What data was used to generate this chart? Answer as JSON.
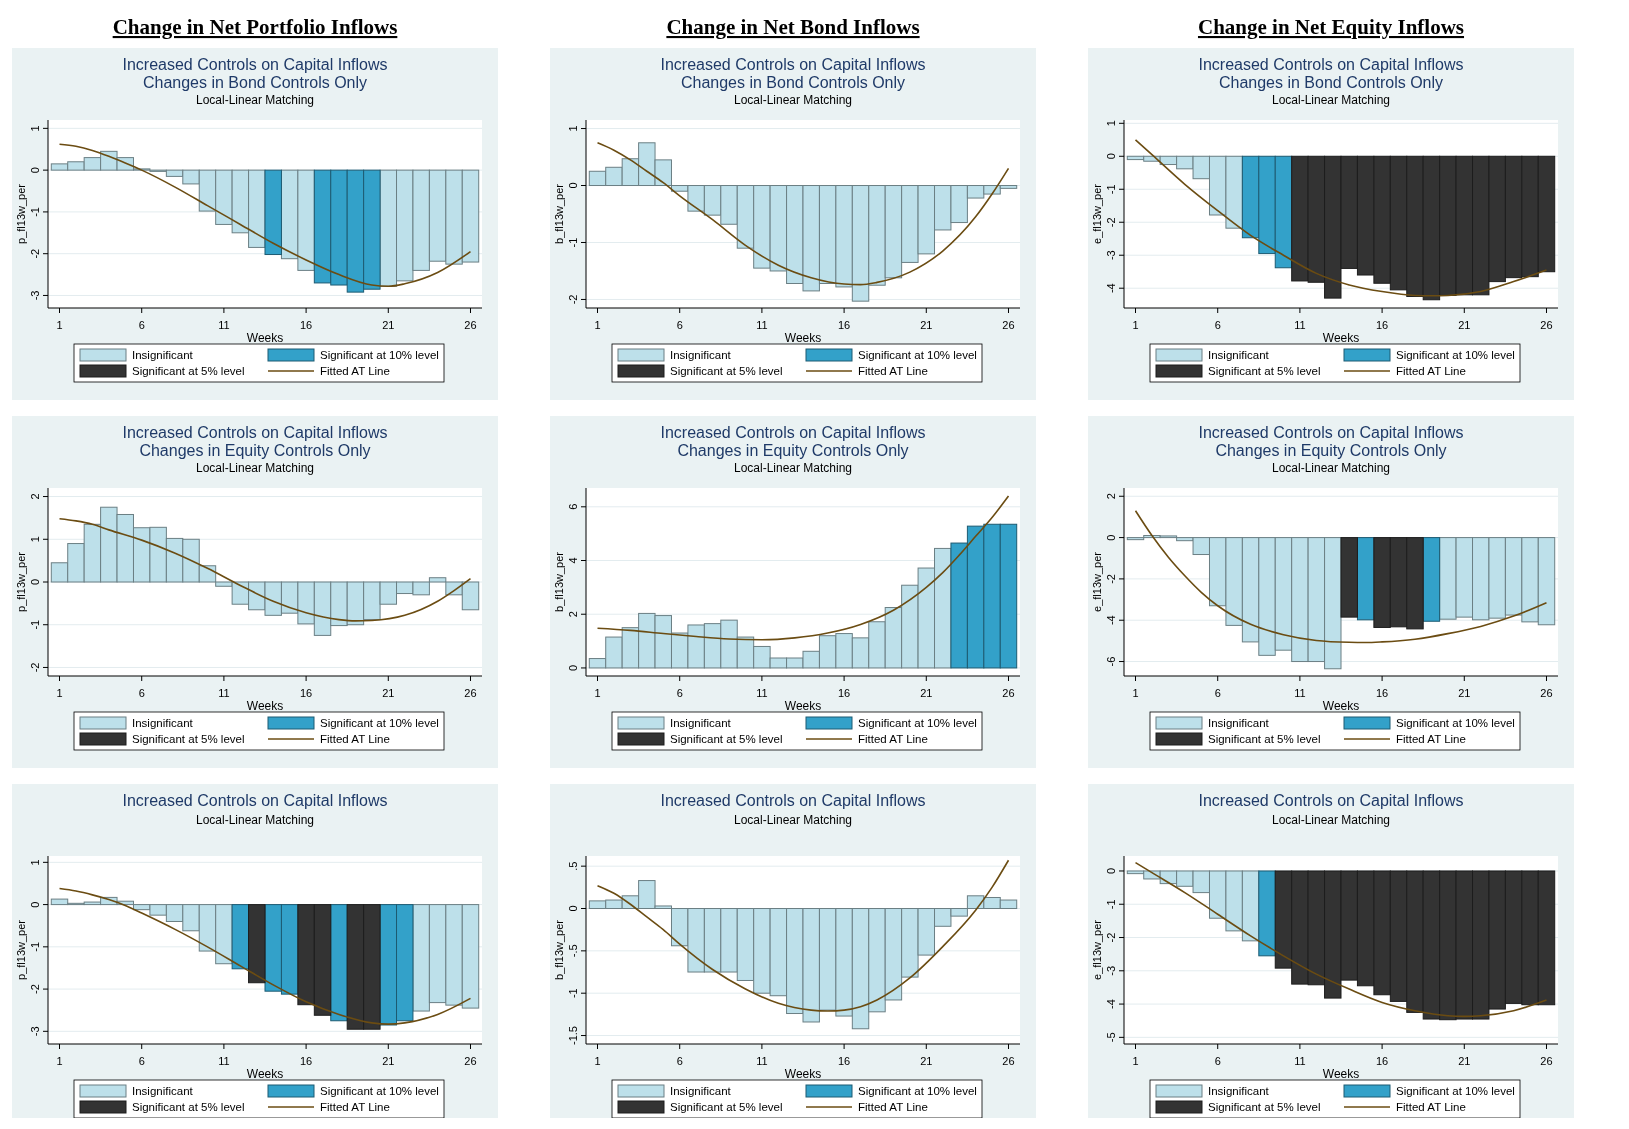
{
  "chart_data": [
    {
      "type": "other",
      "title": "Change in Net Portfolio Inflows"
    },
    {
      "type": "other",
      "title": "Change in Net Bond Inflows"
    },
    {
      "type": "other",
      "title": "Change in Net Equity Inflows"
    },
    {
      "type": "bar",
      "stacked": true,
      "title": "Increased Controls on Capital Inflows",
      "subtitle": "Changes in Bond Controls Only",
      "annotations": [
        "Local-Linear Matching"
      ],
      "xlabel": "Weeks",
      "ylabel": "p_fl13w_per",
      "grid": "y",
      "legend": "bottom",
      "xlim": [
        0.3,
        26.7
      ],
      "xticks": [
        1,
        6,
        11,
        16,
        21,
        26
      ],
      "ylim": [
        -3.3,
        1.2
      ],
      "yticks": [
        -3,
        -2,
        -1,
        0,
        1
      ],
      "x": [
        1,
        2,
        3,
        4,
        5,
        6,
        7,
        8,
        9,
        10,
        11,
        12,
        13,
        14,
        15,
        16,
        17,
        18,
        19,
        20,
        21,
        22,
        23,
        24,
        25,
        26
      ],
      "series": [
        {
          "name": "Insignificant",
          "color": "#bde0ea",
          "values": [
            0.15,
            0.2,
            0.3,
            0.45,
            0.3,
            0.03,
            -0.03,
            -0.15,
            -0.33,
            -0.98,
            -1.3,
            -1.5,
            -1.85,
            null,
            -2.12,
            -2.4,
            null,
            null,
            null,
            null,
            -2.78,
            -2.65,
            -2.4,
            -2.18,
            -2.25,
            -2.2
          ]
        },
        {
          "name": "Significant at 10% level",
          "color": "#33a1c9",
          "values": [
            null,
            null,
            null,
            null,
            null,
            null,
            null,
            null,
            null,
            null,
            null,
            null,
            null,
            -2.02,
            null,
            null,
            -2.7,
            -2.75,
            -2.92,
            -2.85,
            null,
            null,
            null,
            null,
            null,
            null
          ]
        },
        {
          "name": "Significant at 5% level",
          "color": "#333333",
          "values": [
            null,
            null,
            null,
            null,
            null,
            null,
            null,
            null,
            null,
            null,
            null,
            null,
            null,
            null,
            null,
            null,
            null,
            null,
            null,
            null,
            null,
            null,
            null,
            null,
            null,
            null
          ]
        },
        {
          "name": "Fitted AT Line",
          "type": "line",
          "color": "#6b4c12",
          "x": [
            1,
            2,
            3,
            4,
            5,
            6,
            8,
            10,
            12,
            14,
            16,
            18,
            20,
            21,
            22,
            24,
            26
          ],
          "values": [
            0.62,
            0.57,
            0.47,
            0.33,
            0.17,
            0,
            -0.4,
            -0.85,
            -1.3,
            -1.75,
            -2.15,
            -2.5,
            -2.75,
            -2.78,
            -2.72,
            -2.45,
            -1.95
          ]
        }
      ]
    },
    {
      "type": "bar",
      "stacked": true,
      "title": "Increased Controls on Capital Inflows",
      "subtitle": "Changes in Bond Controls Only",
      "annotations": [
        "Local-Linear Matching"
      ],
      "xlabel": "Weeks",
      "ylabel": "b_fl13w_per",
      "grid": "y",
      "legend": "bottom",
      "xlim": [
        0.3,
        26.7
      ],
      "xticks": [
        1,
        6,
        11,
        16,
        21,
        26
      ],
      "ylim": [
        -2.15,
        1.15
      ],
      "yticks": [
        -2,
        -1,
        0,
        1
      ],
      "x": [
        1,
        2,
        3,
        4,
        5,
        6,
        7,
        8,
        9,
        10,
        11,
        12,
        13,
        14,
        15,
        16,
        17,
        18,
        19,
        20,
        21,
        22,
        23,
        24,
        25,
        26
      ],
      "series": [
        {
          "name": "Insignificant",
          "color": "#bde0ea",
          "values": [
            0.25,
            0.32,
            0.47,
            0.75,
            0.45,
            -0.1,
            -0.45,
            -0.52,
            -0.68,
            -1.1,
            -1.45,
            -1.5,
            -1.72,
            -1.85,
            -1.72,
            -1.78,
            -2.03,
            -1.75,
            -1.62,
            -1.35,
            -1.2,
            -0.78,
            -0.65,
            -0.22,
            -0.15,
            -0.05
          ]
        },
        {
          "name": "Significant at 10% level",
          "color": "#33a1c9",
          "values": [
            null,
            null,
            null,
            null,
            null,
            null,
            null,
            null,
            null,
            null,
            null,
            null,
            null,
            null,
            null,
            null,
            null,
            null,
            null,
            null,
            null,
            null,
            null,
            null,
            null,
            null
          ]
        },
        {
          "name": "Significant at 5% level",
          "color": "#333333",
          "values": [
            null,
            null,
            null,
            null,
            null,
            null,
            null,
            null,
            null,
            null,
            null,
            null,
            null,
            null,
            null,
            null,
            null,
            null,
            null,
            null,
            null,
            null,
            null,
            null,
            null,
            null
          ]
        },
        {
          "name": "Fitted AT Line",
          "type": "line",
          "color": "#6b4c12",
          "x": [
            1,
            2,
            3,
            4,
            5,
            6,
            8,
            10,
            12,
            14,
            16,
            17,
            18,
            20,
            22,
            24,
            25,
            26
          ],
          "values": [
            0.75,
            0.62,
            0.45,
            0.25,
            0.05,
            -0.18,
            -0.6,
            -1.05,
            -1.4,
            -1.62,
            -1.73,
            -1.74,
            -1.7,
            -1.52,
            -1.15,
            -0.55,
            -0.15,
            0.3
          ]
        }
      ]
    },
    {
      "type": "bar",
      "stacked": true,
      "title": "Increased Controls on Capital Inflows",
      "subtitle": "Changes in Bond Controls Only",
      "annotations": [
        "Local-Linear Matching"
      ],
      "xlabel": "Weeks",
      "ylabel": "e_fl13w_per",
      "grid": "y",
      "legend": "bottom",
      "xlim": [
        0.3,
        26.7
      ],
      "xticks": [
        1,
        6,
        11,
        16,
        21,
        26
      ],
      "ylim": [
        -4.6,
        1.1
      ],
      "yticks": [
        -4,
        -3,
        -2,
        -1,
        0,
        1
      ],
      "x": [
        1,
        2,
        3,
        4,
        5,
        6,
        7,
        8,
        9,
        10,
        11,
        12,
        13,
        14,
        15,
        16,
        17,
        18,
        19,
        20,
        21,
        22,
        23,
        24,
        25,
        26
      ],
      "series": [
        {
          "name": "Insignificant",
          "color": "#bde0ea",
          "values": [
            -0.1,
            -0.15,
            -0.25,
            -0.38,
            -0.68,
            -1.78,
            -2.18,
            null,
            null,
            null,
            null,
            null,
            null,
            null,
            null,
            null,
            null,
            null,
            null,
            null,
            null,
            null,
            null,
            null,
            null,
            null
          ]
        },
        {
          "name": "Significant at 10% level",
          "color": "#33a1c9",
          "values": [
            null,
            null,
            null,
            null,
            null,
            null,
            null,
            -2.47,
            -2.95,
            -3.38,
            null,
            null,
            null,
            null,
            null,
            null,
            null,
            null,
            null,
            null,
            null,
            null,
            null,
            null,
            null,
            null
          ]
        },
        {
          "name": "Significant at 5% level",
          "color": "#333333",
          "values": [
            null,
            null,
            null,
            null,
            null,
            null,
            null,
            null,
            null,
            null,
            -3.78,
            -3.82,
            -4.3,
            -3.4,
            -3.6,
            -3.85,
            -4.05,
            -4.25,
            -4.35,
            -4.22,
            -4.2,
            -4.2,
            -3.8,
            -3.68,
            -3.65,
            -3.5
          ]
        },
        {
          "name": "Fitted AT Line",
          "type": "line",
          "color": "#6b4c12",
          "x": [
            1,
            2,
            4,
            6,
            8,
            10,
            12,
            14,
            16,
            18,
            19,
            20,
            22,
            24,
            26
          ],
          "values": [
            0.5,
            0.05,
            -0.85,
            -1.65,
            -2.4,
            -3.0,
            -3.55,
            -3.9,
            -4.1,
            -4.22,
            -4.23,
            -4.22,
            -4.1,
            -3.8,
            -3.45
          ]
        }
      ]
    },
    {
      "type": "bar",
      "stacked": true,
      "title": "Increased Controls on Capital Inflows",
      "subtitle": "Changes in Equity Controls Only",
      "annotations": [
        "Local-Linear Matching"
      ],
      "xlabel": "Weeks",
      "ylabel": "p_fl13w_per",
      "grid": "y",
      "legend": "bottom",
      "xlim": [
        0.3,
        26.7
      ],
      "xticks": [
        1,
        6,
        11,
        16,
        21,
        26
      ],
      "ylim": [
        -2.2,
        2.2
      ],
      "yticks": [
        -2,
        -1,
        0,
        1,
        2
      ],
      "x": [
        1,
        2,
        3,
        4,
        5,
        6,
        7,
        8,
        9,
        10,
        11,
        12,
        13,
        14,
        15,
        16,
        17,
        18,
        19,
        20,
        21,
        22,
        23,
        24,
        25,
        26
      ],
      "series": [
        {
          "name": "Insignificant",
          "color": "#bde0ea",
          "values": [
            0.45,
            0.9,
            1.35,
            1.75,
            1.58,
            1.27,
            1.28,
            1.02,
            1.0,
            0.38,
            -0.1,
            -0.52,
            -0.65,
            -0.78,
            -0.73,
            -0.98,
            -1.25,
            -1.02,
            -1.0,
            -0.88,
            -0.52,
            -0.27,
            -0.3,
            0.1,
            -0.3,
            -0.65
          ]
        },
        {
          "name": "Significant at 10% level",
          "color": "#33a1c9",
          "values": [
            null,
            null,
            null,
            null,
            null,
            null,
            null,
            null,
            null,
            null,
            null,
            null,
            null,
            null,
            null,
            null,
            null,
            null,
            null,
            null,
            null,
            null,
            null,
            null,
            null,
            null
          ]
        },
        {
          "name": "Significant at 5% level",
          "color": "#333333",
          "values": [
            null,
            null,
            null,
            null,
            null,
            null,
            null,
            null,
            null,
            null,
            null,
            null,
            null,
            null,
            null,
            null,
            null,
            null,
            null,
            null,
            null,
            null,
            null,
            null,
            null,
            null
          ]
        },
        {
          "name": "Fitted AT Line",
          "type": "line",
          "color": "#6b4c12",
          "x": [
            1,
            2,
            3,
            4,
            6,
            8,
            10,
            12,
            14,
            16,
            18,
            19,
            20,
            22,
            24,
            25,
            26
          ],
          "values": [
            1.48,
            1.43,
            1.35,
            1.22,
            0.98,
            0.68,
            0.32,
            -0.08,
            -0.45,
            -0.72,
            -0.88,
            -0.91,
            -0.9,
            -0.78,
            -0.45,
            -0.2,
            0.08
          ]
        }
      ]
    },
    {
      "type": "bar",
      "stacked": true,
      "title": "Increased Controls on Capital Inflows",
      "subtitle": "Changes in Equity Controls Only",
      "annotations": [
        "Local-Linear Matching"
      ],
      "xlabel": "Weeks",
      "ylabel": "b_fl13w_per",
      "grid": "y",
      "legend": "bottom",
      "xlim": [
        0.3,
        26.7
      ],
      "xticks": [
        1,
        6,
        11,
        16,
        21,
        26
      ],
      "ylim": [
        -0.3,
        6.7
      ],
      "yticks": [
        0,
        2,
        4,
        6
      ],
      "x": [
        1,
        2,
        3,
        4,
        5,
        6,
        7,
        8,
        9,
        10,
        11,
        12,
        13,
        14,
        15,
        16,
        17,
        18,
        19,
        20,
        21,
        22,
        23,
        24,
        25,
        26
      ],
      "series": [
        {
          "name": "Insignificant",
          "color": "#bde0ea",
          "values": [
            0.35,
            1.15,
            1.5,
            2.03,
            1.95,
            1.3,
            1.6,
            1.65,
            1.78,
            1.15,
            0.8,
            0.37,
            0.37,
            0.62,
            1.2,
            1.28,
            1.12,
            1.72,
            2.25,
            3.08,
            3.72,
            4.45,
            null,
            null,
            null,
            null
          ]
        },
        {
          "name": "Significant at 10% level",
          "color": "#33a1c9",
          "values": [
            null,
            null,
            null,
            null,
            null,
            null,
            null,
            null,
            null,
            null,
            null,
            null,
            null,
            null,
            null,
            null,
            null,
            null,
            null,
            null,
            null,
            null,
            4.65,
            5.28,
            5.35,
            5.35
          ]
        },
        {
          "name": "Significant at 5% level",
          "color": "#333333",
          "values": [
            null,
            null,
            null,
            null,
            null,
            null,
            null,
            null,
            null,
            null,
            null,
            null,
            null,
            null,
            null,
            null,
            null,
            null,
            null,
            null,
            null,
            null,
            null,
            null,
            null,
            null
          ]
        },
        {
          "name": "Fitted AT Line",
          "type": "line",
          "color": "#6b4c12",
          "x": [
            1,
            3,
            5,
            7,
            9,
            11,
            13,
            15,
            17,
            19,
            21,
            22,
            23,
            24,
            25,
            26
          ],
          "values": [
            1.48,
            1.4,
            1.28,
            1.17,
            1.08,
            1.05,
            1.12,
            1.3,
            1.62,
            2.15,
            3.0,
            3.55,
            4.2,
            4.9,
            5.6,
            6.4
          ]
        }
      ]
    },
    {
      "type": "bar",
      "stacked": true,
      "title": "Increased Controls on Capital Inflows",
      "subtitle": "Changes in Equity Controls Only",
      "annotations": [
        "Local-Linear Matching"
      ],
      "xlabel": "Weeks",
      "ylabel": "e_fl13w_per",
      "grid": "y",
      "legend": "bottom",
      "xlim": [
        0.3,
        26.7
      ],
      "xticks": [
        1,
        6,
        11,
        16,
        21,
        26
      ],
      "ylim": [
        -6.7,
        2.4
      ],
      "yticks": [
        -6,
        -4,
        -2,
        0,
        2
      ],
      "x": [
        1,
        2,
        3,
        4,
        5,
        6,
        7,
        8,
        9,
        10,
        11,
        12,
        13,
        14,
        15,
        16,
        17,
        18,
        19,
        20,
        21,
        22,
        23,
        24,
        25,
        26
      ],
      "series": [
        {
          "name": "Insignificant",
          "color": "#bde0ea",
          "values": [
            -0.1,
            0.1,
            0.08,
            -0.15,
            -0.82,
            -3.3,
            -4.25,
            -5.05,
            -5.7,
            -5.45,
            -6.0,
            -6.0,
            -6.35,
            null,
            null,
            null,
            null,
            null,
            null,
            -3.95,
            -3.85,
            -3.98,
            -3.9,
            -3.75,
            -4.08,
            -4.22
          ]
        },
        {
          "name": "Significant at 10% level",
          "color": "#33a1c9",
          "values": [
            null,
            null,
            null,
            null,
            null,
            null,
            null,
            null,
            null,
            null,
            null,
            null,
            null,
            null,
            -3.98,
            null,
            null,
            null,
            -4.05,
            null,
            null,
            null,
            null,
            null,
            null,
            null
          ]
        },
        {
          "name": "Significant at 5% level",
          "color": "#333333",
          "values": [
            null,
            null,
            null,
            null,
            null,
            null,
            null,
            null,
            null,
            null,
            null,
            null,
            null,
            -3.85,
            null,
            -4.35,
            -4.32,
            -4.42,
            null,
            null,
            null,
            null,
            null,
            null,
            null,
            null
          ]
        },
        {
          "name": "Fitted AT Line",
          "type": "line",
          "color": "#6b4c12",
          "x": [
            1,
            2,
            3,
            4,
            5,
            6,
            8,
            10,
            12,
            14,
            15,
            16,
            18,
            20,
            22,
            24,
            26
          ],
          "values": [
            1.3,
            0.1,
            -0.95,
            -1.85,
            -2.65,
            -3.3,
            -4.2,
            -4.7,
            -4.98,
            -5.07,
            -5.08,
            -5.05,
            -4.92,
            -4.65,
            -4.3,
            -3.8,
            -3.15
          ]
        }
      ]
    },
    {
      "type": "bar",
      "stacked": true,
      "title": "Increased Controls on Capital Inflows",
      "annotations": [
        "Local-Linear Matching"
      ],
      "xlabel": "Weeks",
      "ylabel": "p_fl13w_per",
      "grid": "y",
      "legend": "bottom",
      "xlim": [
        0.3,
        26.7
      ],
      "xticks": [
        1,
        6,
        11,
        16,
        21,
        26
      ],
      "ylim": [
        -3.3,
        1.15
      ],
      "yticks": [
        -3,
        -2,
        -1,
        0,
        1
      ],
      "x": [
        1,
        2,
        3,
        4,
        5,
        6,
        7,
        8,
        9,
        10,
        11,
        12,
        13,
        14,
        15,
        16,
        17,
        18,
        19,
        20,
        21,
        22,
        23,
        24,
        25,
        26
      ],
      "series": [
        {
          "name": "Insignificant",
          "color": "#bde0ea",
          "values": [
            0.13,
            0.03,
            0.06,
            0.17,
            0.08,
            -0.12,
            -0.25,
            -0.4,
            -0.62,
            -1.1,
            -1.4,
            null,
            null,
            null,
            null,
            null,
            null,
            null,
            null,
            null,
            null,
            null,
            -2.52,
            -2.32,
            -2.38,
            -2.45
          ]
        },
        {
          "name": "Significant at 10% level",
          "color": "#33a1c9",
          "values": [
            null,
            null,
            null,
            null,
            null,
            null,
            null,
            null,
            null,
            null,
            null,
            -1.52,
            null,
            -2.05,
            -2.12,
            null,
            null,
            -2.75,
            null,
            null,
            -2.85,
            -2.75,
            null,
            null,
            null,
            null
          ]
        },
        {
          "name": "Significant at 5% level",
          "color": "#333333",
          "values": [
            null,
            null,
            null,
            null,
            null,
            null,
            null,
            null,
            null,
            null,
            null,
            null,
            -1.85,
            null,
            null,
            -2.37,
            -2.62,
            null,
            -2.95,
            -2.95,
            null,
            null,
            null,
            null,
            null,
            null
          ]
        },
        {
          "name": "Fitted AT Line",
          "type": "line",
          "color": "#6b4c12",
          "x": [
            1,
            2,
            3,
            4,
            5,
            6,
            8,
            10,
            12,
            14,
            16,
            18,
            20,
            21,
            22,
            24,
            26
          ],
          "values": [
            0.38,
            0.32,
            0.23,
            0.12,
            -0.02,
            -0.2,
            -0.58,
            -1.0,
            -1.45,
            -1.9,
            -2.3,
            -2.6,
            -2.8,
            -2.83,
            -2.8,
            -2.6,
            -2.22
          ]
        }
      ]
    },
    {
      "type": "bar",
      "stacked": true,
      "title": "Increased Controls on Capital Inflows",
      "annotations": [
        "Local-Linear Matching"
      ],
      "xlabel": "Weeks",
      "ylabel": "b_fl13w_per",
      "grid": "y",
      "legend": "bottom",
      "xlim": [
        0.3,
        26.7
      ],
      "xticks": [
        1,
        6,
        11,
        16,
        21,
        26
      ],
      "ylim": [
        -1.6,
        0.62
      ],
      "yticks": [
        {
          "value": -1.5,
          "label": "-1.5"
        },
        -1,
        {
          "value": -0.5,
          "label": "-.5"
        },
        0,
        {
          "value": 0.5,
          "label": ".5"
        }
      ],
      "x": [
        1,
        2,
        3,
        4,
        5,
        6,
        7,
        8,
        9,
        10,
        11,
        12,
        13,
        14,
        15,
        16,
        17,
        18,
        19,
        20,
        21,
        22,
        23,
        24,
        25,
        26
      ],
      "series": [
        {
          "name": "Insignificant",
          "color": "#bde0ea",
          "values": [
            0.09,
            0.1,
            0.15,
            0.33,
            0.03,
            -0.44,
            -0.75,
            -0.75,
            -0.75,
            -0.85,
            -1.0,
            -1.03,
            -1.24,
            -1.34,
            -1.2,
            -1.27,
            -1.42,
            -1.22,
            -1.08,
            -0.81,
            -0.55,
            -0.21,
            -0.09,
            0.15,
            0.13,
            0.1
          ]
        },
        {
          "name": "Significant at 10% level",
          "color": "#33a1c9",
          "values": [
            null,
            null,
            null,
            null,
            null,
            null,
            null,
            null,
            null,
            null,
            null,
            null,
            null,
            null,
            null,
            null,
            null,
            null,
            null,
            null,
            null,
            null,
            null,
            null,
            null,
            null
          ]
        },
        {
          "name": "Significant at 5% level",
          "color": "#333333",
          "values": [
            null,
            null,
            null,
            null,
            null,
            null,
            null,
            null,
            null,
            null,
            null,
            null,
            null,
            null,
            null,
            null,
            null,
            null,
            null,
            null,
            null,
            null,
            null,
            null,
            null,
            null
          ]
        },
        {
          "name": "Fitted AT Line",
          "type": "line",
          "color": "#6b4c12",
          "x": [
            1,
            2,
            3,
            4,
            5,
            6,
            8,
            10,
            12,
            14,
            15,
            16,
            17,
            18,
            20,
            22,
            24,
            25,
            26
          ],
          "values": [
            0.27,
            0.18,
            0.05,
            -0.1,
            -0.25,
            -0.42,
            -0.72,
            -0.95,
            -1.12,
            -1.2,
            -1.21,
            -1.2,
            -1.16,
            -1.08,
            -0.82,
            -0.45,
            -0.02,
            0.25,
            0.57
          ]
        }
      ]
    },
    {
      "type": "bar",
      "stacked": true,
      "title": "Increased Controls on Capital Inflows",
      "annotations": [
        "Local-Linear Matching"
      ],
      "xlabel": "Weeks",
      "ylabel": "e_fl13w_per",
      "grid": "y",
      "legend": "bottom",
      "xlim": [
        0.3,
        26.7
      ],
      "xticks": [
        1,
        6,
        11,
        16,
        21,
        26
      ],
      "ylim": [
        -5.2,
        0.45
      ],
      "yticks": [
        -5,
        -4,
        -3,
        -2,
        -1,
        0
      ],
      "x": [
        1,
        2,
        3,
        4,
        5,
        6,
        7,
        8,
        9,
        10,
        11,
        12,
        13,
        14,
        15,
        16,
        17,
        18,
        19,
        20,
        21,
        22,
        23,
        24,
        25,
        26
      ],
      "series": [
        {
          "name": "Insignificant",
          "color": "#bde0ea",
          "values": [
            -0.08,
            -0.24,
            -0.38,
            -0.46,
            -0.65,
            -1.42,
            -1.8,
            -2.1,
            null,
            null,
            null,
            null,
            null,
            null,
            null,
            null,
            null,
            null,
            null,
            null,
            null,
            null,
            null,
            null,
            null,
            null
          ]
        },
        {
          "name": "Significant at 10% level",
          "color": "#33a1c9",
          "values": [
            null,
            null,
            null,
            null,
            null,
            null,
            null,
            null,
            -2.55,
            null,
            null,
            null,
            null,
            null,
            null,
            null,
            null,
            null,
            null,
            null,
            null,
            null,
            null,
            null,
            null,
            null
          ]
        },
        {
          "name": "Significant at 5% level",
          "color": "#333333",
          "values": [
            null,
            null,
            null,
            null,
            null,
            null,
            null,
            null,
            null,
            -2.92,
            -3.4,
            -3.42,
            -3.82,
            -3.28,
            -3.45,
            -3.72,
            -3.92,
            -4.25,
            -4.45,
            -4.47,
            -4.45,
            -4.45,
            -4.15,
            -3.98,
            -4.02,
            -4.02
          ]
        },
        {
          "name": "Fitted AT Line",
          "type": "line",
          "color": "#6b4c12",
          "x": [
            1,
            2,
            4,
            6,
            8,
            10,
            12,
            14,
            16,
            18,
            20,
            21,
            22,
            24,
            26
          ],
          "values": [
            0.25,
            -0.05,
            -0.65,
            -1.3,
            -1.95,
            -2.55,
            -3.1,
            -3.55,
            -3.95,
            -4.2,
            -4.35,
            -4.37,
            -4.35,
            -4.2,
            -3.88
          ]
        }
      ]
    }
  ]
}
